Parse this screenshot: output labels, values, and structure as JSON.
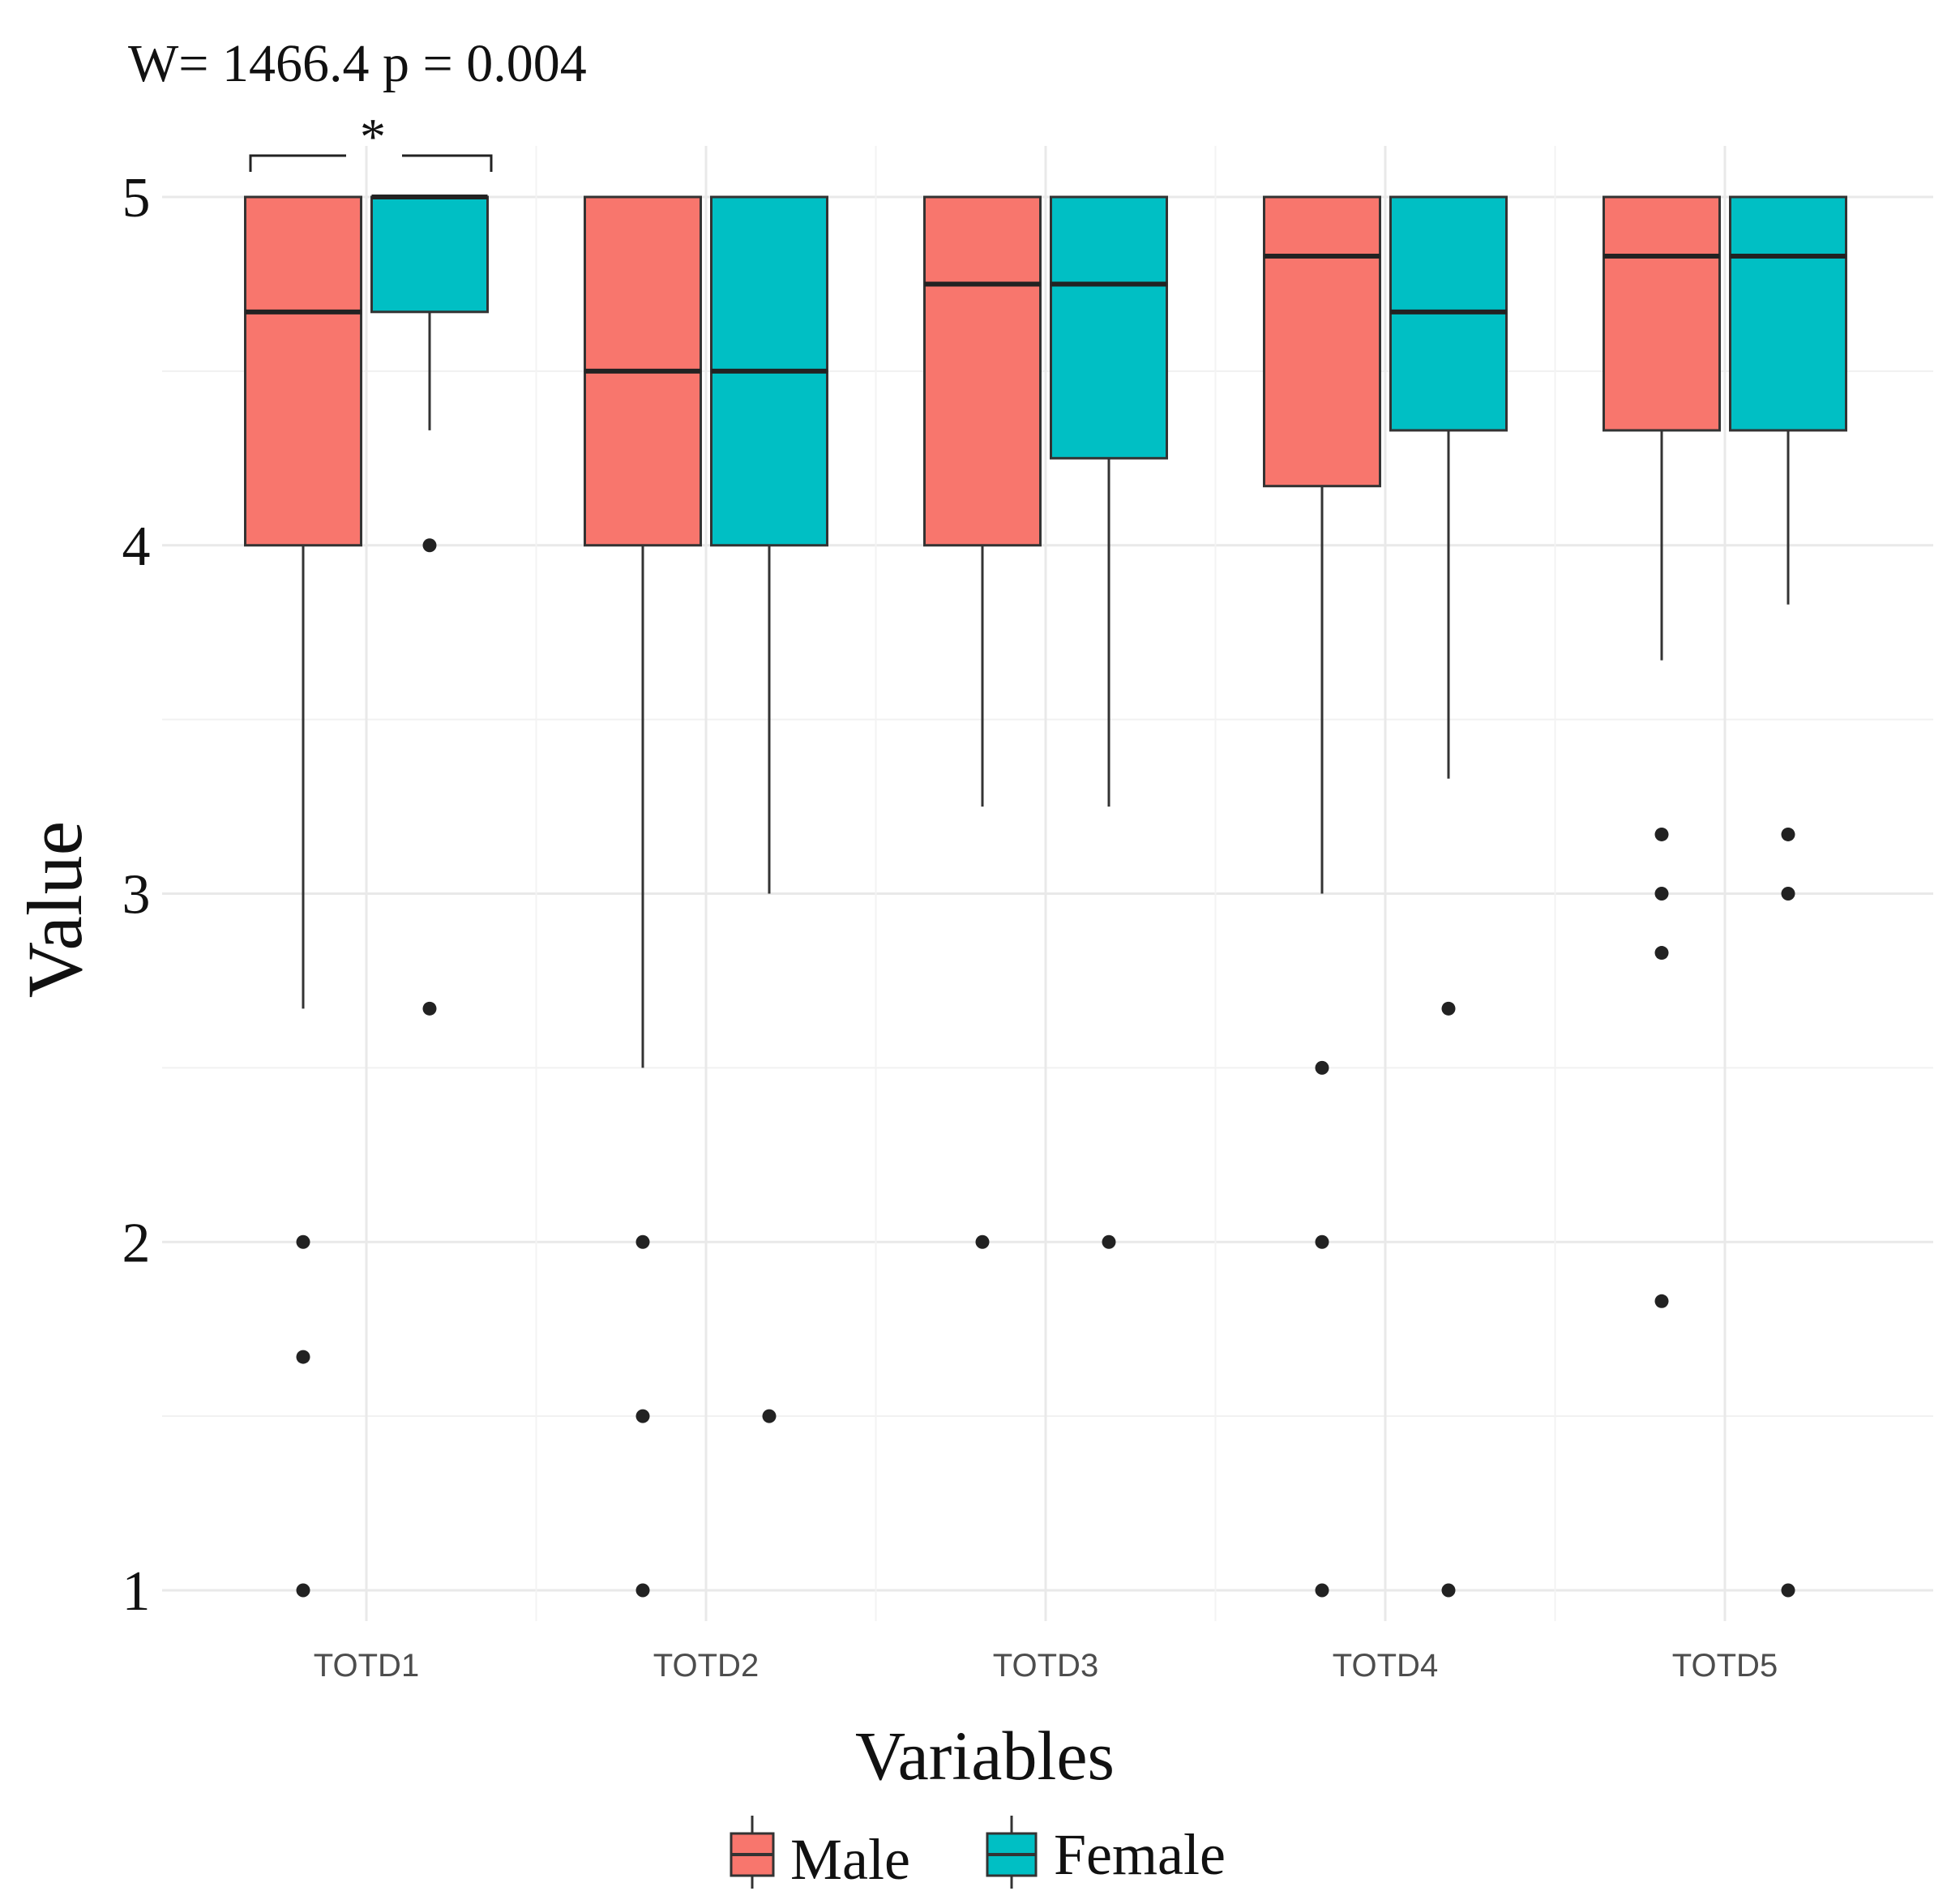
{
  "chart_data": {
    "type": "boxplot",
    "annotation": {
      "text": "W= 1466.4 p =  0.004",
      "significance": "*",
      "compares": [
        "TOTD1 Male",
        "TOTD1 Female"
      ]
    },
    "xlabel": "Variables",
    "ylabel": "Value",
    "ylim": [
      0.9,
      5.1
    ],
    "yticks": [
      1,
      2,
      3,
      4,
      5
    ],
    "ygrid_minor": [
      1.5,
      2.5,
      3.5,
      4.5
    ],
    "grid": true,
    "categories": [
      "TOTD1",
      "TOTD2",
      "TOTD3",
      "TOTD4",
      "TOTD5"
    ],
    "legend": {
      "position": "bottom",
      "items": [
        {
          "label": "Male",
          "color": "#F8766D"
        },
        {
          "label": "Female",
          "color": "#00BFC4"
        }
      ]
    },
    "series": [
      {
        "name": "Male",
        "color": "#F8766D",
        "boxes": [
          {
            "category": "TOTD1",
            "whisker_low": 2.67,
            "q1": 4.0,
            "median": 4.67,
            "q3": 5.0,
            "whisker_high": 5.0,
            "outliers": [
              2.0,
              1.67,
              1.0
            ]
          },
          {
            "category": "TOTD2",
            "whisker_low": 2.5,
            "q1": 4.0,
            "median": 4.5,
            "q3": 5.0,
            "whisker_high": 5.0,
            "outliers": [
              2.0,
              1.5,
              1.0
            ]
          },
          {
            "category": "TOTD3",
            "whisker_low": 3.25,
            "q1": 4.0,
            "median": 4.75,
            "q3": 5.0,
            "whisker_high": 5.0,
            "outliers": [
              2.0
            ]
          },
          {
            "category": "TOTD4",
            "whisker_low": 3.0,
            "q1": 4.17,
            "median": 4.83,
            "q3": 5.0,
            "whisker_high": 5.0,
            "outliers": [
              2.5,
              2.0,
              1.0
            ]
          },
          {
            "category": "TOTD5",
            "whisker_low": 3.67,
            "q1": 4.33,
            "median": 4.83,
            "q3": 5.0,
            "whisker_high": 5.0,
            "outliers": [
              3.17,
              3.0,
              2.83,
              1.83
            ]
          }
        ]
      },
      {
        "name": "Female",
        "color": "#00BFC4",
        "boxes": [
          {
            "category": "TOTD1",
            "whisker_low": 4.33,
            "q1": 4.67,
            "median": 5.0,
            "q3": 5.0,
            "whisker_high": 5.0,
            "outliers": [
              4.0,
              2.67
            ]
          },
          {
            "category": "TOTD2",
            "whisker_low": 3.0,
            "q1": 4.0,
            "median": 4.5,
            "q3": 5.0,
            "whisker_high": 5.0,
            "outliers": [
              1.5
            ]
          },
          {
            "category": "TOTD3",
            "whisker_low": 3.25,
            "q1": 4.25,
            "median": 4.75,
            "q3": 5.0,
            "whisker_high": 5.0,
            "outliers": [
              2.0
            ]
          },
          {
            "category": "TOTD4",
            "whisker_low": 3.33,
            "q1": 4.33,
            "median": 4.67,
            "q3": 5.0,
            "whisker_high": 5.0,
            "outliers": [
              2.67,
              1.0
            ]
          },
          {
            "category": "TOTD5",
            "whisker_low": 3.83,
            "q1": 4.33,
            "median": 4.83,
            "q3": 5.0,
            "whisker_high": 5.0,
            "outliers": [
              3.17,
              3.0,
              1.0
            ]
          }
        ]
      }
    ]
  }
}
